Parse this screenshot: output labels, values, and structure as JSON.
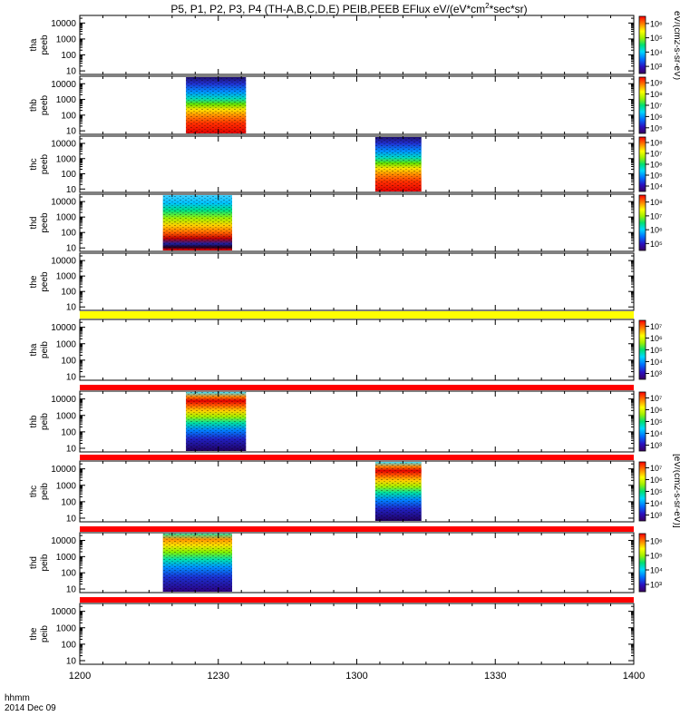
{
  "chart_data": {
    "type": "heatmap",
    "title": "P5, P1, P2, P3, P4 (TH-A,B,C,D,E) PEIB,PEEB EFlux eV/(eV*cm²*sec*sr)",
    "title_parts": {
      "main": "P5, P1, P2, P3, P4 (TH-A,B,C,D,E) PEIB,PEEB EFlux eV/(eV*cm",
      "sup": "2",
      "tail": "*sec*sr)"
    },
    "x_axis": {
      "tick_labels": [
        "1200",
        "1230",
        "1300",
        "1330",
        "1400"
      ],
      "tick_values_min": [
        0,
        30,
        60,
        90,
        120
      ],
      "range_min": [
        0,
        120
      ],
      "label_line1": "hhmm",
      "label_line2": "2014 Dec 09"
    },
    "y_axis": {
      "scale": "log",
      "range": [
        6,
        30000
      ],
      "tick_labels": [
        "10",
        "100",
        "1000",
        "10000"
      ]
    },
    "colorbar_labels": {
      "peeb": "eV/(cm2-s-sr-eV)",
      "peib": "[eV/(cm2-s-sr-eV)]"
    },
    "panels": [
      {
        "probe": "tha",
        "instrument": "peeb",
        "label1": "tha",
        "label2": "peeb",
        "data": [],
        "colorbar": [
          "10⁶",
          "10⁵",
          "10⁴",
          "10³"
        ],
        "top_bar": null
      },
      {
        "probe": "thb",
        "instrument": "peeb",
        "label1": "thb",
        "label2": "peeb",
        "data": [
          {
            "t_start": 23,
            "t_end": 36,
            "profile": "ion"
          }
        ],
        "colorbar": [
          "10⁹",
          "10⁸",
          "10⁷",
          "10⁶",
          "10⁵"
        ],
        "top_bar": null
      },
      {
        "probe": "thc",
        "instrument": "peeb",
        "label1": "thc",
        "label2": "peeb",
        "data": [
          {
            "t_start": 64,
            "t_end": 74,
            "profile": "ion"
          }
        ],
        "colorbar": [
          "10⁸",
          "10⁷",
          "10⁶",
          "10⁵",
          "10⁴"
        ],
        "top_bar": null
      },
      {
        "probe": "thd",
        "instrument": "peeb",
        "label1": "thd",
        "label2": "peeb",
        "data": [
          {
            "t_start": 18,
            "t_end": 33,
            "profile": "thd"
          }
        ],
        "colorbar": [
          "10⁸",
          "10⁷",
          "10⁶",
          "10⁵"
        ],
        "top_bar": null
      },
      {
        "probe": "the",
        "instrument": "peeb",
        "label1": "the",
        "label2": "peeb",
        "data": [],
        "colorbar": [],
        "top_bar": null
      },
      {
        "probe": "tha",
        "instrument": "peib",
        "label1": "tha",
        "label2": "peib",
        "data": [],
        "colorbar": [
          "10⁷",
          "10⁶",
          "10⁵",
          "10⁴",
          "10³"
        ],
        "top_bar": "yellow"
      },
      {
        "probe": "thb",
        "instrument": "peib",
        "label1": "thb",
        "label2": "peib",
        "data": [
          {
            "t_start": 23,
            "t_end": 36,
            "profile": "electron"
          }
        ],
        "colorbar": [
          "10⁷",
          "10⁶",
          "10⁵",
          "10⁴",
          "10³"
        ],
        "top_bar": "red"
      },
      {
        "probe": "thc",
        "instrument": "peib",
        "label1": "thc",
        "label2": "peib",
        "data": [
          {
            "t_start": 64,
            "t_end": 74,
            "profile": "electron"
          }
        ],
        "colorbar": [
          "10⁷",
          "10⁶",
          "10⁵",
          "10⁴",
          "10³"
        ],
        "top_bar": "red"
      },
      {
        "probe": "thd",
        "instrument": "peib",
        "label1": "thd",
        "label2": "peib",
        "data": [
          {
            "t_start": 18,
            "t_end": 33,
            "profile": "electron2"
          }
        ],
        "colorbar": [
          "10⁶",
          "10⁵",
          "10⁴",
          "10³"
        ],
        "top_bar": "red"
      },
      {
        "probe": "the",
        "instrument": "peib",
        "label1": "the",
        "label2": "peib",
        "data": [],
        "colorbar": [],
        "top_bar": "red"
      }
    ],
    "colors": {
      "bar_red": "#ff0000",
      "bar_yellow": "#ffff00",
      "axis": "#000000"
    }
  }
}
